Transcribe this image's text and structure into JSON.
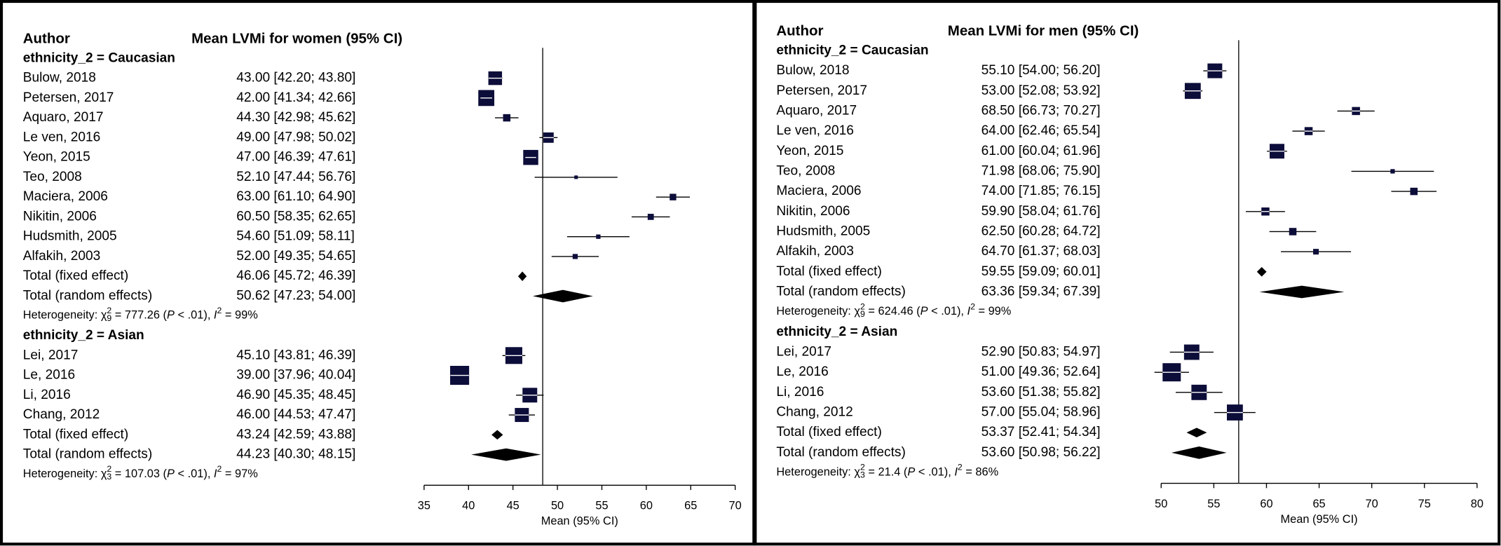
{
  "chart_data": [
    {
      "type": "forest",
      "author_header": "Author",
      "estimate_header": "Mean LVMi for women (95% CI)",
      "xlabel": "Mean (95% CI)",
      "xlim": [
        35,
        70
      ],
      "xticks": [
        35,
        40,
        45,
        50,
        55,
        60,
        65,
        70
      ],
      "ref_line": 48.35,
      "box_color": "#0d0d3a",
      "summary_color": "#9e9e9e",
      "groups": [
        {
          "label": "ethnicity_2 = Caucasian",
          "studies": [
            {
              "name": "Bulow, 2018",
              "mean": 43,
              "lower": 42.2,
              "upper": 43.8,
              "weight": 17,
              "label": "43.00 [42.20; 43.80]"
            },
            {
              "name": "Petersen, 2017",
              "mean": 42,
              "lower": 41.34,
              "upper": 42.66,
              "weight": 24,
              "label": "42.00 [41.34; 42.66]"
            },
            {
              "name": "Aquaro, 2017",
              "mean": 44.3,
              "lower": 42.98,
              "upper": 45.62,
              "weight": 4,
              "label": "44.30 [42.98; 45.62]"
            },
            {
              "name": "Le ven, 2016",
              "mean": 49,
              "lower": 47.98,
              "upper": 50.02,
              "weight": 9,
              "label": "49.00 [47.98; 50.02]"
            },
            {
              "name": "Yeon, 2015",
              "mean": 47,
              "lower": 46.39,
              "upper": 47.61,
              "weight": 21,
              "label": "47.00 [46.39; 47.61]"
            },
            {
              "name": "Teo, 2008",
              "mean": 52.1,
              "lower": 47.44,
              "upper": 56.76,
              "weight": 0.5,
              "label": "52.10 [47.44; 56.76]"
            },
            {
              "name": "Maciera, 2006",
              "mean": 63,
              "lower": 61.1,
              "upper": 64.9,
              "weight": 3,
              "label": "63.00 [61.10; 64.90]"
            },
            {
              "name": "Nikitin, 2006",
              "mean": 60.5,
              "lower": 58.35,
              "upper": 62.65,
              "weight": 2.5,
              "label": "60.50 [58.35; 62.65]"
            },
            {
              "name": "Hudsmith, 2005",
              "mean": 54.6,
              "lower": 51.09,
              "upper": 58.11,
              "weight": 1,
              "label": "54.60 [51.09; 58.11]"
            },
            {
              "name": "Alfakih, 2003",
              "mean": 52,
              "lower": 49.35,
              "upper": 54.65,
              "weight": 1.5,
              "label": "52.00 [49.35; 54.65]"
            }
          ],
          "fixed": {
            "name": "Total (fixed effect)",
            "mean": 46.06,
            "lower": 45.72,
            "upper": 46.39,
            "label": "46.06 [45.72; 46.39]"
          },
          "random": {
            "name": "Total (random effects)",
            "mean": 50.62,
            "lower": 47.23,
            "upper": 54.0,
            "label": "50.62 [47.23; 54.00]"
          },
          "heterogeneity": [
            {
              "text": "Heterogeneity: χ"
            },
            {
              "text": "2",
              "style": "sup"
            },
            {
              "text": "9",
              "style": "sub"
            },
            {
              "text": " = 777.26 ("
            },
            {
              "text": "P",
              "style": "italic"
            },
            {
              "text": " < .01), "
            },
            {
              "text": "I",
              "style": "italic"
            },
            {
              "text": "2",
              "style": "sup"
            },
            {
              "text": " = 99%"
            }
          ]
        },
        {
          "label": "ethnicity_2 = Asian",
          "studies": [
            {
              "name": "Lei, 2017",
              "mean": 45.1,
              "lower": 43.81,
              "upper": 46.39,
              "weight": 27,
              "label": "45.10 [43.81; 46.39]"
            },
            {
              "name": "Le, 2016",
              "mean": 39,
              "lower": 37.96,
              "upper": 40.04,
              "weight": 35,
              "label": "39.00 [37.96; 40.04]"
            },
            {
              "name": "Li, 2016",
              "mean": 46.9,
              "lower": 45.35,
              "upper": 48.45,
              "weight": 20,
              "label": "46.90 [45.35; 48.45]"
            },
            {
              "name": "Chang, 2012",
              "mean": 46,
              "lower": 44.53,
              "upper": 47.47,
              "weight": 18,
              "label": "46.00 [44.53; 47.47]"
            }
          ],
          "fixed": {
            "name": "Total (fixed effect)",
            "mean": 43.24,
            "lower": 42.59,
            "upper": 43.88,
            "label": "43.24 [42.59; 43.88]"
          },
          "random": {
            "name": "Total (random effects)",
            "mean": 44.23,
            "lower": 40.3,
            "upper": 48.15,
            "label": "44.23 [40.30; 48.15]"
          },
          "heterogeneity": [
            {
              "text": "Heterogeneity: χ"
            },
            {
              "text": "2",
              "style": "sup"
            },
            {
              "text": "3",
              "style": "sub"
            },
            {
              "text": " = 107.03 ("
            },
            {
              "text": "P",
              "style": "italic"
            },
            {
              "text": " < .01), "
            },
            {
              "text": "I",
              "style": "italic"
            },
            {
              "text": "2",
              "style": "sup"
            },
            {
              "text": " = 97%"
            }
          ]
        }
      ]
    },
    {
      "type": "forest",
      "author_header": "Author",
      "estimate_header": "Mean LVMi for men (95% CI)",
      "xlabel": "Mean (95% CI)",
      "xlim": [
        50,
        80
      ],
      "xticks": [
        50,
        55,
        60,
        65,
        70,
        75,
        80
      ],
      "ref_line": 57.36,
      "box_color": "#0d0d3a",
      "summary_color": "#9e9e9e",
      "groups": [
        {
          "label": "ethnicity_2 = Caucasian",
          "studies": [
            {
              "name": "Bulow, 2018",
              "mean": 55.1,
              "lower": 54.0,
              "upper": 56.2,
              "weight": 20,
              "label": "55.10 [54.00; 56.20]"
            },
            {
              "name": "Petersen, 2017",
              "mean": 53,
              "lower": 52.08,
              "upper": 53.92,
              "weight": 24,
              "label": "53.00 [52.08; 53.92]"
            },
            {
              "name": "Aquaro, 2017",
              "mean": 68.5,
              "lower": 66.73,
              "upper": 70.27,
              "weight": 5,
              "label": "68.50 [66.73; 70.27]"
            },
            {
              "name": "Le ven, 2016",
              "mean": 64,
              "lower": 62.46,
              "upper": 65.54,
              "weight": 5,
              "label": "64.00 [62.46; 65.54]"
            },
            {
              "name": "Yeon, 2015",
              "mean": 61,
              "lower": 60.04,
              "upper": 61.96,
              "weight": 20,
              "label": "61.00 [60.04; 61.96]"
            },
            {
              "name": "Teo, 2008",
              "mean": 71.98,
              "lower": 68.06,
              "upper": 75.9,
              "weight": 1,
              "label": "71.98 [68.06; 75.90]"
            },
            {
              "name": "Maciera, 2006",
              "mean": 74,
              "lower": 71.85,
              "upper": 76.15,
              "weight": 4,
              "label": "74.00 [71.85; 76.15]"
            },
            {
              "name": "Nikitin, 2006",
              "mean": 59.9,
              "lower": 58.04,
              "upper": 61.76,
              "weight": 5,
              "label": "59.90 [58.04; 61.76]"
            },
            {
              "name": "Hudsmith, 2005",
              "mean": 62.5,
              "lower": 60.28,
              "upper": 64.72,
              "weight": 4,
              "label": "62.50 [60.28; 64.72]"
            },
            {
              "name": "Alfakih, 2003",
              "mean": 64.7,
              "lower": 61.37,
              "upper": 68.03,
              "weight": 2,
              "label": "64.70 [61.37; 68.03]"
            }
          ],
          "fixed": {
            "name": "Total (fixed effect)",
            "mean": 59.55,
            "lower": 59.09,
            "upper": 60.01,
            "label": "59.55 [59.09; 60.01]"
          },
          "random": {
            "name": "Total (random effects)",
            "mean": 63.36,
            "lower": 59.34,
            "upper": 67.39,
            "label": "63.36 [59.34; 67.39]"
          },
          "heterogeneity": [
            {
              "text": "Heterogeneity: χ"
            },
            {
              "text": "2",
              "style": "sup"
            },
            {
              "text": "9",
              "style": "sub"
            },
            {
              "text": " = 624.46 ("
            },
            {
              "text": "P",
              "style": "italic"
            },
            {
              "text": " < .01), "
            },
            {
              "text": "I",
              "style": "italic"
            },
            {
              "text": "2",
              "style": "sup"
            },
            {
              "text": " = 99%"
            }
          ]
        },
        {
          "label": "ethnicity_2 = Asian",
          "studies": [
            {
              "name": "Lei, 2017",
              "mean": 52.9,
              "lower": 50.83,
              "upper": 54.97,
              "weight": 22,
              "label": "52.90 [50.83; 54.97]"
            },
            {
              "name": "Le, 2016",
              "mean": 51,
              "lower": 49.36,
              "upper": 52.64,
              "weight": 32,
              "label": "51.00 [49.36; 52.64]"
            },
            {
              "name": "Li, 2016",
              "mean": 53.6,
              "lower": 51.38,
              "upper": 55.82,
              "weight": 22,
              "label": "53.60 [51.38; 55.82]"
            },
            {
              "name": "Chang, 2012",
              "mean": 57,
              "lower": 55.04,
              "upper": 58.96,
              "weight": 24,
              "label": "57.00 [55.04; 58.96]"
            }
          ],
          "fixed": {
            "name": "Total (fixed effect)",
            "mean": 53.37,
            "lower": 52.41,
            "upper": 54.34,
            "label": "53.37 [52.41; 54.34]"
          },
          "random": {
            "name": "Total (random effects)",
            "mean": 53.6,
            "lower": 50.98,
            "upper": 56.22,
            "label": "53.60 [50.98; 56.22]"
          },
          "heterogeneity": [
            {
              "text": "Heterogeneity: χ"
            },
            {
              "text": "2",
              "style": "sup"
            },
            {
              "text": "3",
              "style": "sub"
            },
            {
              "text": " = 21.4 ("
            },
            {
              "text": "P",
              "style": "italic"
            },
            {
              "text": " < .01), "
            },
            {
              "text": "I",
              "style": "italic"
            },
            {
              "text": "2",
              "style": "sup"
            },
            {
              "text": " = 86%"
            }
          ]
        }
      ]
    }
  ]
}
